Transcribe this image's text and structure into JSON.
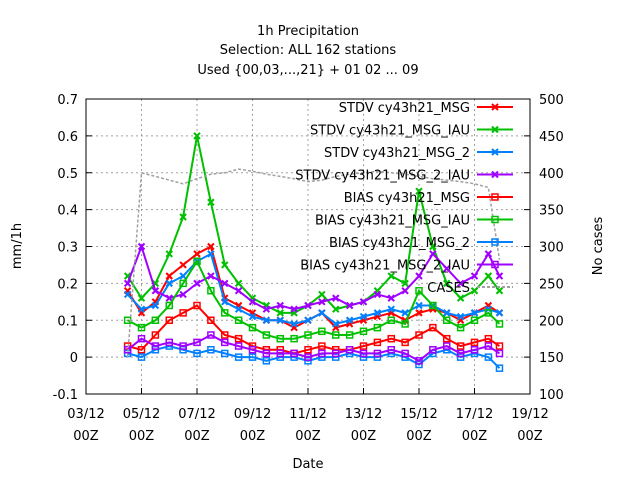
{
  "chart_data": {
    "type": "line",
    "title_lines": [
      "1h Precipitation",
      "Selection: ALL    162 stations",
      "Used {00,03,...,21} + 01 02 ... 09"
    ],
    "xlabel": "Date",
    "ylabel": "mm/1h",
    "y2label": "No cases",
    "xlim": [
      0,
      16
    ],
    "ylim": [
      -0.1,
      0.7
    ],
    "y2lim": [
      100,
      500
    ],
    "grid": true,
    "legend_position": "top-right",
    "x_ticks": [
      {
        "x": 0,
        "l1": "03/12",
        "l2": "00Z"
      },
      {
        "x": 2,
        "l1": "05/12",
        "l2": "00Z"
      },
      {
        "x": 4,
        "l1": "07/12",
        "l2": "00Z"
      },
      {
        "x": 6,
        "l1": "09/12",
        "l2": "00Z"
      },
      {
        "x": 8,
        "l1": "11/12",
        "l2": "00Z"
      },
      {
        "x": 10,
        "l1": "13/12",
        "l2": "00Z"
      },
      {
        "x": 12,
        "l1": "15/12",
        "l2": "00Z"
      },
      {
        "x": 14,
        "l1": "17/12",
        "l2": "00Z"
      },
      {
        "x": 16,
        "l1": "19/12",
        "l2": "00Z"
      }
    ],
    "y_ticks": [
      "-0.1",
      "0",
      "0.1",
      "0.2",
      "0.3",
      "0.4",
      "0.5",
      "0.6",
      "0.7"
    ],
    "y2_ticks": [
      "100",
      "150",
      "200",
      "250",
      "300",
      "350",
      "400",
      "450",
      "500"
    ],
    "x": [
      1.5,
      2.0,
      2.5,
      3.0,
      3.5,
      4.0,
      4.5,
      5.0,
      5.5,
      6.0,
      6.5,
      7.0,
      7.5,
      8.0,
      8.5,
      9.0,
      9.5,
      10.0,
      10.5,
      11.0,
      11.5,
      12.0,
      12.5,
      13.0,
      13.5,
      14.0,
      14.5,
      14.9
    ],
    "series": [
      {
        "name": "STDV cy43h21_MSG",
        "color": "#ff0000",
        "marker": "x",
        "axis": "y",
        "values": [
          0.18,
          0.12,
          0.15,
          0.22,
          0.25,
          0.28,
          0.3,
          0.16,
          0.14,
          0.12,
          0.1,
          0.1,
          0.08,
          0.1,
          0.12,
          0.08,
          0.09,
          0.1,
          0.11,
          0.12,
          0.1,
          0.12,
          0.13,
          0.12,
          0.1,
          0.12,
          0.14,
          0.12
        ]
      },
      {
        "name": "STDV cy43h21_MSG_IAU",
        "color": "#00c000",
        "marker": "x",
        "axis": "y",
        "values": [
          0.22,
          0.16,
          0.2,
          0.28,
          0.38,
          0.6,
          0.42,
          0.25,
          0.2,
          0.16,
          0.14,
          0.12,
          0.12,
          0.14,
          0.17,
          0.13,
          0.14,
          0.15,
          0.18,
          0.22,
          0.2,
          0.45,
          0.3,
          0.2,
          0.16,
          0.18,
          0.22,
          0.18
        ]
      },
      {
        "name": "STDV cy43h21_MSG_2",
        "color": "#0080ff",
        "marker": "x",
        "axis": "y",
        "values": [
          0.17,
          0.13,
          0.14,
          0.2,
          0.22,
          0.26,
          0.28,
          0.15,
          0.13,
          0.11,
          0.1,
          0.1,
          0.09,
          0.1,
          0.12,
          0.09,
          0.1,
          0.11,
          0.12,
          0.13,
          0.12,
          0.14,
          0.14,
          0.12,
          0.11,
          0.12,
          0.13,
          0.12
        ]
      },
      {
        "name": "STDV cy43h21_MSG_2_IAU",
        "color": "#a000ff",
        "marker": "x",
        "axis": "y",
        "values": [
          0.2,
          0.3,
          0.18,
          0.16,
          0.17,
          0.2,
          0.22,
          0.2,
          0.18,
          0.15,
          0.13,
          0.14,
          0.13,
          0.14,
          0.15,
          0.16,
          0.14,
          0.15,
          0.17,
          0.16,
          0.18,
          0.22,
          0.28,
          0.24,
          0.2,
          0.22,
          0.28,
          0.22
        ]
      },
      {
        "name": "BIAS cy43h21_MSG",
        "color": "#ff0000",
        "marker": "square",
        "axis": "y",
        "values": [
          0.03,
          0.02,
          0.06,
          0.1,
          0.12,
          0.14,
          0.1,
          0.06,
          0.05,
          0.03,
          0.02,
          0.02,
          0.01,
          0.02,
          0.03,
          0.02,
          0.02,
          0.03,
          0.04,
          0.05,
          0.04,
          0.06,
          0.08,
          0.05,
          0.03,
          0.04,
          0.05,
          0.03
        ]
      },
      {
        "name": "BIAS cy43h21_MSG_IAU",
        "color": "#00c000",
        "marker": "square",
        "axis": "y",
        "values": [
          0.1,
          0.08,
          0.1,
          0.14,
          0.2,
          0.26,
          0.18,
          0.12,
          0.1,
          0.08,
          0.06,
          0.05,
          0.05,
          0.06,
          0.07,
          0.06,
          0.06,
          0.07,
          0.08,
          0.1,
          0.09,
          0.18,
          0.14,
          0.1,
          0.08,
          0.1,
          0.12,
          0.09
        ]
      },
      {
        "name": "BIAS cy43h21_MSG_2",
        "color": "#0080ff",
        "marker": "square",
        "axis": "y",
        "values": [
          0.01,
          0.0,
          0.02,
          0.03,
          0.02,
          0.01,
          0.02,
          0.01,
          0.0,
          0.0,
          -0.01,
          0.0,
          0.0,
          -0.01,
          0.0,
          0.0,
          0.01,
          0.0,
          0.0,
          0.01,
          0.0,
          -0.02,
          0.01,
          0.02,
          0.0,
          0.01,
          0.0,
          -0.03
        ]
      },
      {
        "name": "BIAS cy43h21_MSG_2_IAU",
        "color": "#a000ff",
        "marker": "square",
        "axis": "y",
        "values": [
          0.02,
          0.05,
          0.03,
          0.04,
          0.03,
          0.04,
          0.06,
          0.04,
          0.03,
          0.02,
          0.01,
          0.01,
          0.01,
          0.0,
          0.01,
          0.01,
          0.02,
          0.01,
          0.01,
          0.02,
          0.01,
          -0.01,
          0.02,
          0.03,
          0.01,
          0.02,
          0.03,
          0.01
        ]
      },
      {
        "name": "CASES",
        "color": "#a0a0a0",
        "marker": "none",
        "axis": "y2",
        "values": [
          150,
          400,
          395,
          390,
          385,
          392,
          398,
          400,
          405,
          402,
          398,
          395,
          392,
          388,
          390,
          395,
          398,
          400,
          402,
          400,
          398,
          395,
          392,
          390,
          388,
          385,
          380,
          282
        ]
      }
    ]
  }
}
